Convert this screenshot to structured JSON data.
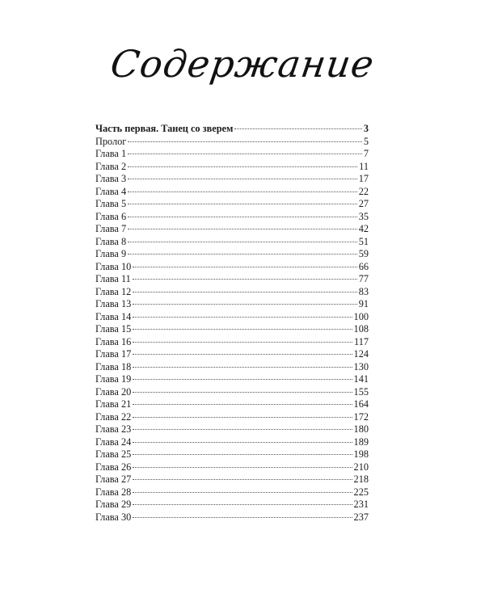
{
  "title": "Содержание",
  "toc": [
    {
      "label": "Часть первая. Танец со зверем",
      "page": "3",
      "bold": true
    },
    {
      "label": "Пролог",
      "page": "5"
    },
    {
      "label": "Глава 1",
      "page": "7"
    },
    {
      "label": "Глава 2",
      "page": "11"
    },
    {
      "label": "Глава 3",
      "page": "17"
    },
    {
      "label": "Глава 4",
      "page": "22"
    },
    {
      "label": "Глава 5",
      "page": "27"
    },
    {
      "label": "Глава 6",
      "page": "35"
    },
    {
      "label": "Глава 7",
      "page": "42"
    },
    {
      "label": "Глава 8",
      "page": "51"
    },
    {
      "label": "Глава 9",
      "page": "59"
    },
    {
      "label": "Глава 10",
      "page": "66"
    },
    {
      "label": "Глава 11",
      "page": "77"
    },
    {
      "label": "Глава 12",
      "page": "83"
    },
    {
      "label": "Глава 13",
      "page": "91"
    },
    {
      "label": "Глава 14",
      "page": "100"
    },
    {
      "label": "Глава 15",
      "page": "108"
    },
    {
      "label": "Глава 16",
      "page": "117"
    },
    {
      "label": "Глава 17",
      "page": "124"
    },
    {
      "label": "Глава 18",
      "page": "130"
    },
    {
      "label": "Глава 19",
      "page": "141"
    },
    {
      "label": "Глава 20",
      "page": "155"
    },
    {
      "label": "Глава 21",
      "page": "164"
    },
    {
      "label": "Глава 22",
      "page": "172"
    },
    {
      "label": "Глава 23",
      "page": "180"
    },
    {
      "label": "Глава 24",
      "page": "189"
    },
    {
      "label": "Глава 25",
      "page": "198"
    },
    {
      "label": "Глава 26",
      "page": "210"
    },
    {
      "label": "Глава 27",
      "page": "218"
    },
    {
      "label": "Глава 28",
      "page": "225"
    },
    {
      "label": "Глава 29",
      "page": "231"
    },
    {
      "label": "Глава 30",
      "page": "237"
    }
  ]
}
